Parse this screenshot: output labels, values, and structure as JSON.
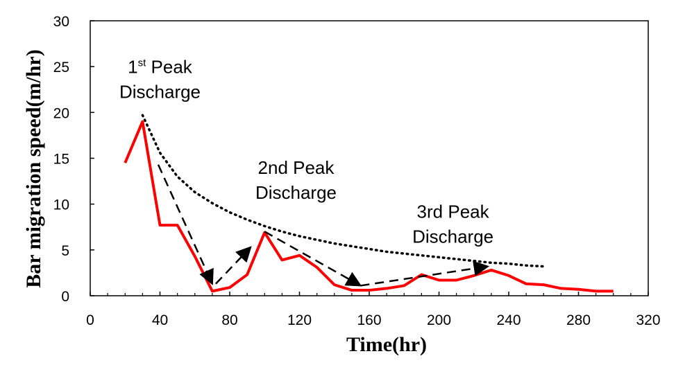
{
  "chart_data": {
    "type": "line",
    "xlabel": "Time(hr)",
    "ylabel": "Bar migration speed(m/hr)",
    "xlim": [
      0,
      320
    ],
    "ylim": [
      0,
      30
    ],
    "x_ticks": [
      0,
      40,
      80,
      120,
      160,
      200,
      240,
      280,
      320
    ],
    "y_ticks": [
      0,
      5,
      10,
      15,
      20,
      25,
      30
    ],
    "grid": false,
    "colors": {
      "series": "#ff0000",
      "trend": "#000000",
      "arrows": "#000000"
    },
    "series": [
      {
        "x": [
          20,
          30,
          40,
          50,
          60,
          70,
          80,
          90,
          100,
          110,
          120,
          130,
          140,
          150,
          160,
          170,
          180,
          190,
          200,
          210,
          220,
          230,
          240,
          250,
          260,
          270,
          280,
          290,
          300
        ],
        "y": [
          14.5,
          19.0,
          7.7,
          7.7,
          4.3,
          0.5,
          0.9,
          2.3,
          6.9,
          3.9,
          4.4,
          3.1,
          1.2,
          0.6,
          0.6,
          0.8,
          1.1,
          2.3,
          1.7,
          1.7,
          2.2,
          2.8,
          2.2,
          1.3,
          1.2,
          0.8,
          0.7,
          0.5,
          0.5
        ]
      }
    ],
    "trend_curve": {
      "x": [
        30,
        40,
        50,
        60,
        70,
        80,
        90,
        100,
        110,
        120,
        130,
        140,
        150,
        160,
        170,
        180,
        190,
        200,
        210,
        220,
        230,
        240,
        250,
        260
      ],
      "y": [
        19.7,
        15.6,
        13.0,
        11.3,
        10.1,
        9.1,
        8.3,
        7.6,
        7.0,
        6.5,
        6.1,
        5.7,
        5.4,
        5.1,
        4.8,
        4.6,
        4.4,
        4.2,
        4.0,
        3.8,
        3.6,
        3.5,
        3.3,
        3.2
      ]
    },
    "arrows": [
      {
        "from": [
          39,
          14.3
        ],
        "to": [
          70,
          1.3
        ]
      },
      {
        "from": [
          72,
          1.3
        ],
        "to": [
          92,
          5.3
        ]
      },
      {
        "from": [
          100,
          7.0
        ],
        "to": [
          155,
          1.1
        ]
      },
      {
        "from": [
          155,
          1.1
        ],
        "to": [
          228,
          3.2
        ]
      }
    ],
    "annotations": [
      {
        "base": "1",
        "sup": "st",
        "rest": " Peak",
        "line2": "Discharge",
        "x": 40,
        "y": 24.3
      },
      {
        "text": "2nd Peak",
        "line2": "Discharge",
        "x": 118,
        "y": 13.3
      },
      {
        "text": "3rd Peak",
        "line2": "Discharge",
        "x": 208,
        "y": 8.5
      }
    ]
  }
}
